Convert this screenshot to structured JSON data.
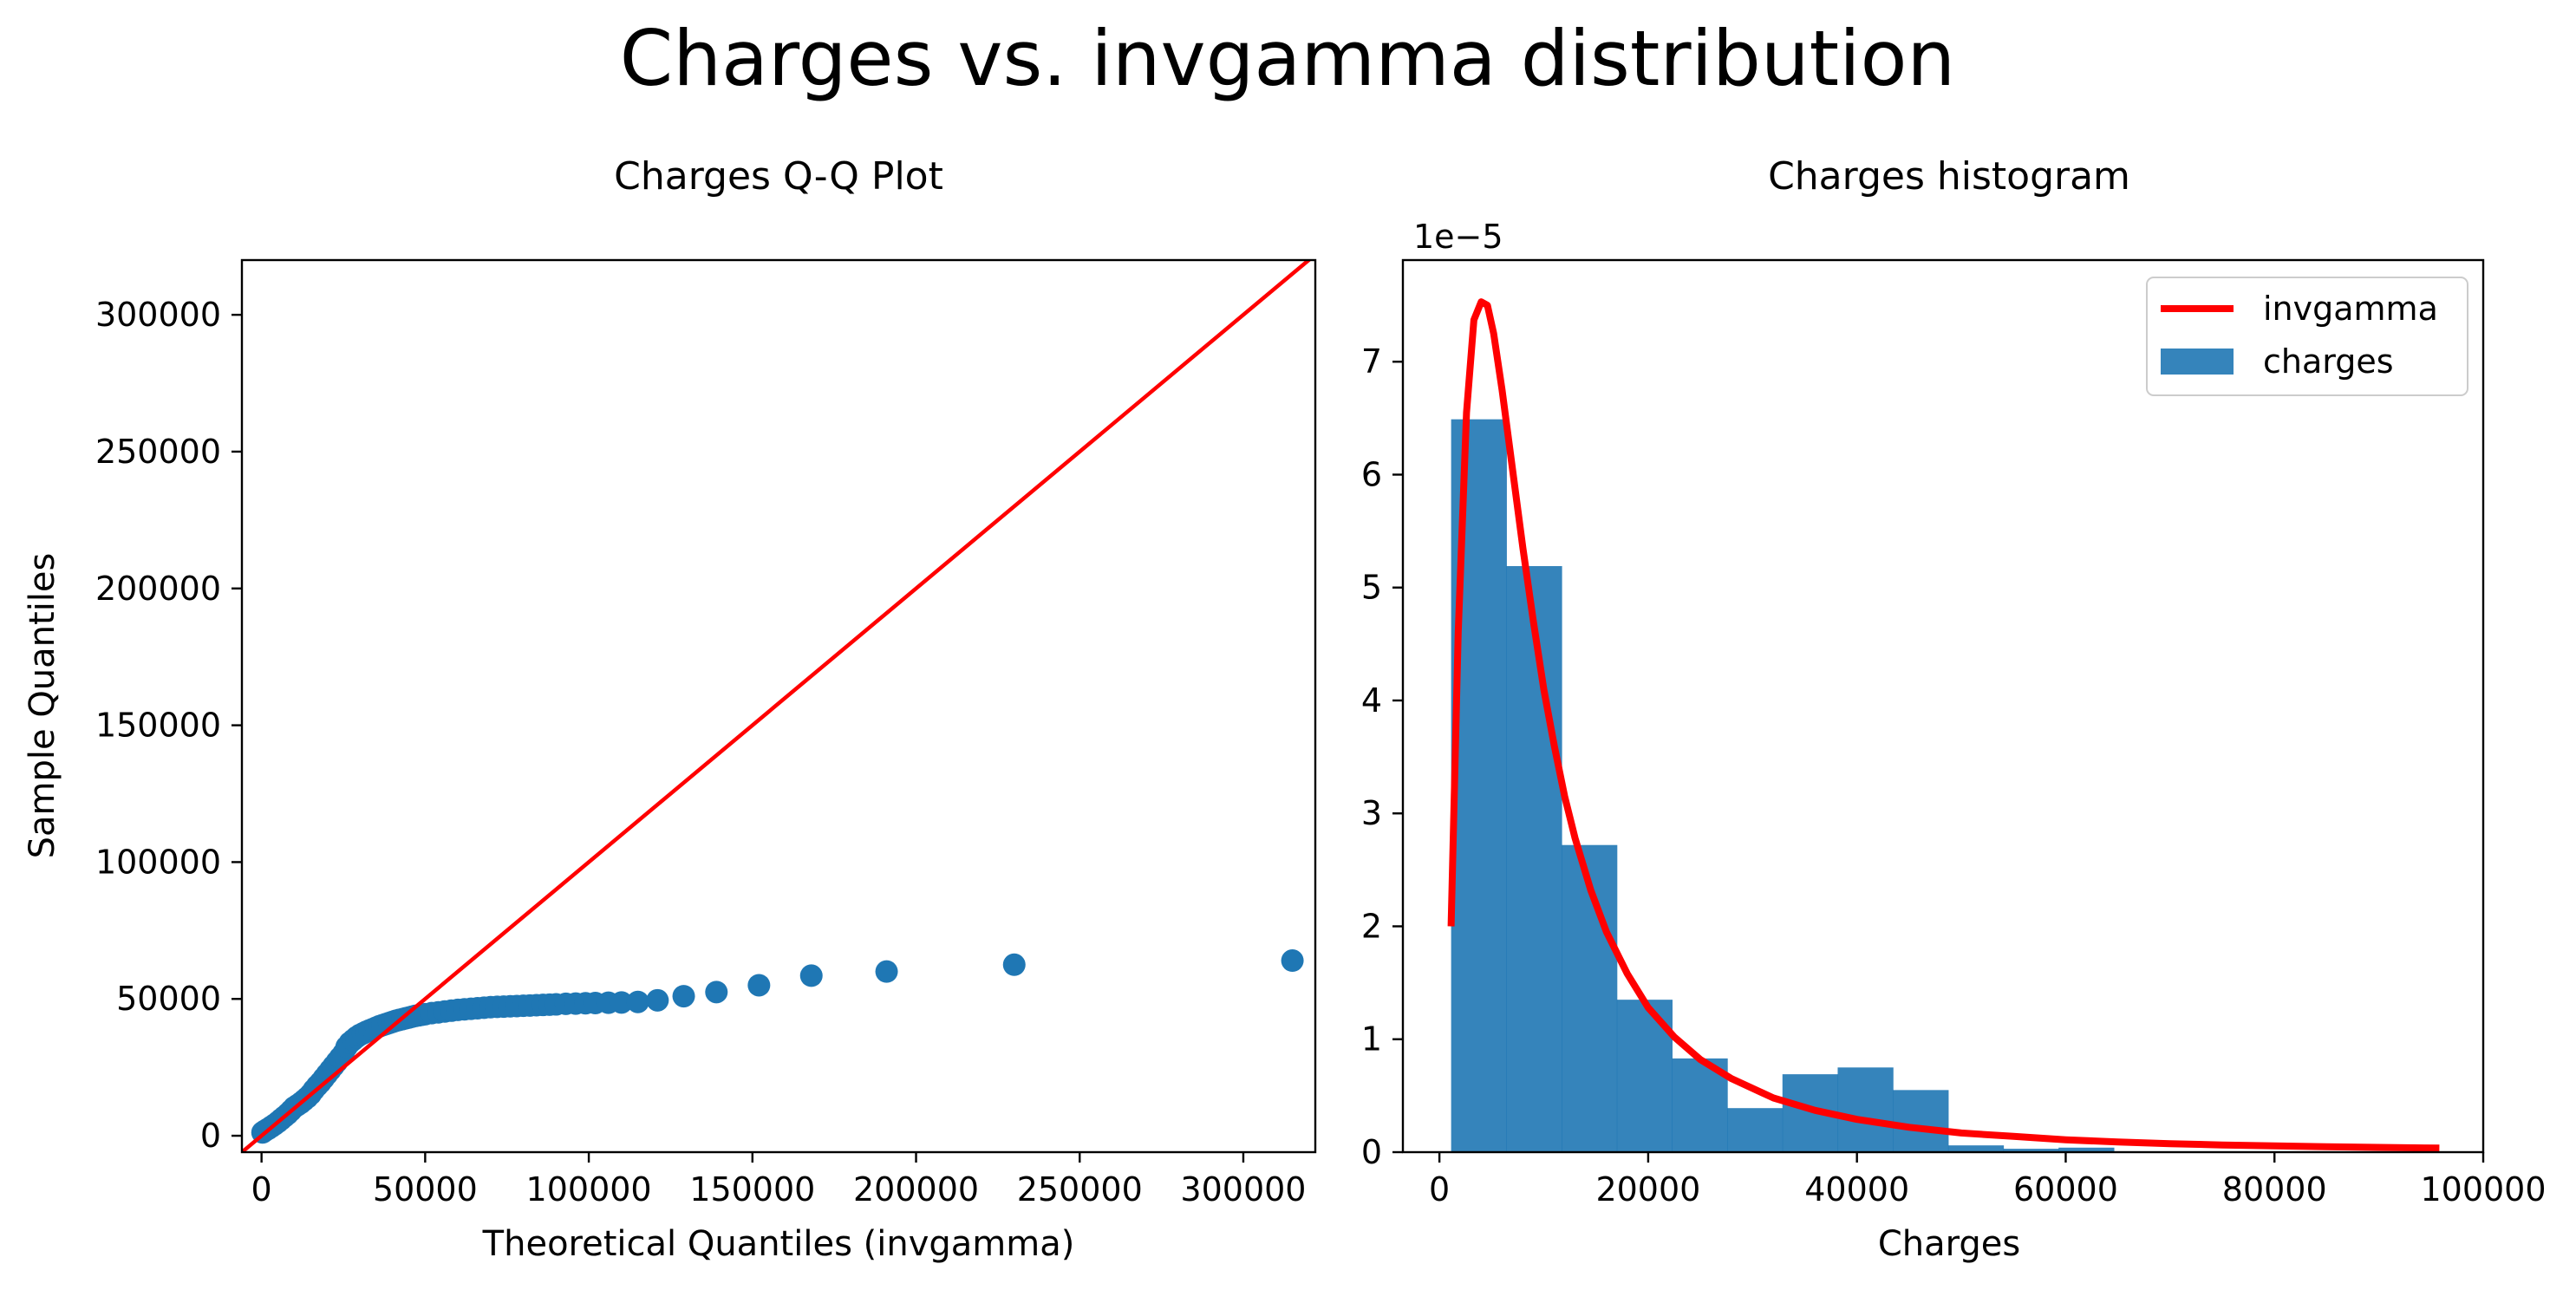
{
  "figure": {
    "suptitle": "Charges vs. invgamma distribution"
  },
  "chart_data": [
    {
      "type": "scatter",
      "title": "Charges Q-Q Plot",
      "xlabel": "Theoretical Quantiles (invgamma)",
      "ylabel": "Sample Quantiles",
      "xlim": [
        -6000,
        322000
      ],
      "ylim": [
        -6000,
        320000
      ],
      "xticks": [
        0,
        50000,
        100000,
        150000,
        200000,
        250000,
        300000
      ],
      "yticks": [
        0,
        50000,
        100000,
        150000,
        200000,
        250000,
        300000
      ],
      "grid": false,
      "point_color": "#1f77b4",
      "line_color": "#ff0000",
      "reference_line": [
        [
          -6000,
          -6000
        ],
        [
          322000,
          322000
        ]
      ],
      "points": [
        [
          300,
          1200
        ],
        [
          1000,
          1800
        ],
        [
          2000,
          2500
        ],
        [
          3000,
          3300
        ],
        [
          4000,
          4100
        ],
        [
          5000,
          5000
        ],
        [
          6000,
          6000
        ],
        [
          7000,
          7000
        ],
        [
          8000,
          8000
        ],
        [
          9000,
          9200
        ],
        [
          10000,
          10400
        ],
        [
          11000,
          11200
        ],
        [
          12000,
          12000
        ],
        [
          13000,
          13000
        ],
        [
          14000,
          14000
        ],
        [
          15000,
          15200
        ],
        [
          16000,
          16800
        ],
        [
          17000,
          18200
        ],
        [
          18000,
          19500
        ],
        [
          19000,
          21000
        ],
        [
          20000,
          22500
        ],
        [
          21000,
          24000
        ],
        [
          22000,
          25500
        ],
        [
          23000,
          27000
        ],
        [
          24000,
          28500
        ],
        [
          25000,
          30000
        ],
        [
          26000,
          32500
        ],
        [
          27000,
          34000
        ],
        [
          28000,
          35000
        ],
        [
          29000,
          36000
        ],
        [
          30000,
          36800
        ],
        [
          31000,
          37400
        ],
        [
          32000,
          38000
        ],
        [
          33000,
          38500
        ],
        [
          34000,
          39000
        ],
        [
          35000,
          39500
        ],
        [
          36000,
          40000
        ],
        [
          37000,
          40400
        ],
        [
          38000,
          40800
        ],
        [
          39000,
          41200
        ],
        [
          40000,
          41600
        ],
        [
          41000,
          42000
        ],
        [
          42000,
          42300
        ],
        [
          43000,
          42600
        ],
        [
          44000,
          42900
        ],
        [
          45000,
          43200
        ],
        [
          46000,
          43500
        ],
        [
          47000,
          43800
        ],
        [
          48000,
          44000
        ],
        [
          49000,
          44200
        ],
        [
          50000,
          44400
        ],
        [
          52000,
          44800
        ],
        [
          54000,
          45100
        ],
        [
          56000,
          45400
        ],
        [
          58000,
          45700
        ],
        [
          60000,
          46000
        ],
        [
          62000,
          46200
        ],
        [
          64000,
          46400
        ],
        [
          66000,
          46600
        ],
        [
          68000,
          46800
        ],
        [
          70000,
          47000
        ],
        [
          72000,
          47100
        ],
        [
          74000,
          47200
        ],
        [
          76000,
          47300
        ],
        [
          78000,
          47400
        ],
        [
          80000,
          47500
        ],
        [
          82000,
          47600
        ],
        [
          84000,
          47700
        ],
        [
          86000,
          47800
        ],
        [
          88000,
          47900
        ],
        [
          90000,
          48000
        ],
        [
          93000,
          48200
        ],
        [
          96000,
          48300
        ],
        [
          99000,
          48400
        ],
        [
          102000,
          48500
        ],
        [
          106000,
          48600
        ],
        [
          110000,
          48700
        ],
        [
          115000,
          48900
        ],
        [
          121000,
          49500
        ],
        [
          129000,
          51000
        ],
        [
          139000,
          52500
        ],
        [
          152000,
          55000
        ],
        [
          168000,
          58500
        ],
        [
          191000,
          60000
        ],
        [
          230000,
          62500
        ],
        [
          315000,
          64000
        ]
      ]
    },
    {
      "type": "bar",
      "title": "Charges histogram",
      "xlabel": "Charges",
      "ylabel": "",
      "scale_offset": "1e−5",
      "xlim": [
        -3500,
        100000
      ],
      "ylim": [
        0,
        7.9
      ],
      "xticks": [
        0,
        20000,
        40000,
        60000,
        80000,
        100000
      ],
      "yticks": [
        0,
        1,
        2,
        3,
        4,
        5,
        6,
        7
      ],
      "grid": false,
      "legend_placement": "upper-right",
      "legend": [
        {
          "label": "invgamma",
          "kind": "line",
          "color": "#ff0000"
        },
        {
          "label": "charges",
          "kind": "patch",
          "color": "#1f77b4"
        }
      ],
      "bar_color": "#1f77b4",
      "bar_alpha": 0.9,
      "bins": [
        {
          "x0": 1122,
          "x1": 6412,
          "value": 6.49
        },
        {
          "x0": 6412,
          "x1": 11702,
          "value": 5.19
        },
        {
          "x0": 11702,
          "x1": 16993,
          "value": 2.72
        },
        {
          "x0": 16993,
          "x1": 22283,
          "value": 1.35
        },
        {
          "x0": 22283,
          "x1": 27574,
          "value": 0.83
        },
        {
          "x0": 27574,
          "x1": 32864,
          "value": 0.39
        },
        {
          "x0": 32864,
          "x1": 38155,
          "value": 0.69
        },
        {
          "x0": 38155,
          "x1": 43445,
          "value": 0.75
        },
        {
          "x0": 43445,
          "x1": 48736,
          "value": 0.55
        },
        {
          "x0": 48736,
          "x1": 54026,
          "value": 0.06
        },
        {
          "x0": 54026,
          "x1": 59317,
          "value": 0.03
        },
        {
          "x0": 59317,
          "x1": 64607,
          "value": 0.04
        }
      ],
      "series": [
        {
          "name": "invgamma",
          "color": "#ff0000",
          "x": [
            1122,
            1800,
            2600,
            3300,
            4000,
            4600,
            5200,
            6000,
            7000,
            8000,
            9000,
            10000,
            11000,
            12000,
            13000,
            14500,
            16000,
            18000,
            20000,
            22500,
            25000,
            28000,
            32000,
            36000,
            40000,
            45000,
            50000,
            55000,
            60000,
            65000,
            70000,
            75000,
            80000,
            85000,
            90000,
            95800
          ],
          "values": [
            2.0,
            4.6,
            6.55,
            7.37,
            7.53,
            7.5,
            7.25,
            6.75,
            6.05,
            5.35,
            4.7,
            4.1,
            3.6,
            3.15,
            2.78,
            2.32,
            1.95,
            1.58,
            1.28,
            1.02,
            0.82,
            0.65,
            0.48,
            0.37,
            0.29,
            0.22,
            0.17,
            0.14,
            0.11,
            0.09,
            0.075,
            0.064,
            0.055,
            0.048,
            0.042,
            0.036
          ]
        }
      ]
    }
  ]
}
